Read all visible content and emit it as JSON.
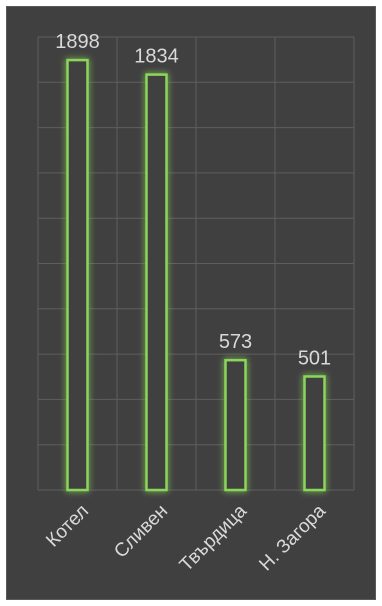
{
  "chart_data": {
    "type": "bar",
    "categories": [
      "Котел",
      "Сливен",
      "Твърдица",
      "Н. Загора"
    ],
    "values": [
      1898,
      1834,
      573,
      501
    ],
    "data_labels": [
      "1898",
      "1834",
      "573",
      "501"
    ],
    "title": "",
    "xlabel": "",
    "ylabel": "",
    "ylim": [
      0,
      2000
    ],
    "grid": true,
    "legend": "none",
    "colors": {
      "background": "#404040",
      "bar_fill": "#404040",
      "bar_stroke": "#70ad47",
      "glow": "#8bd65a",
      "grid": "#5e5e5e",
      "text": "#d9d9d9"
    }
  }
}
